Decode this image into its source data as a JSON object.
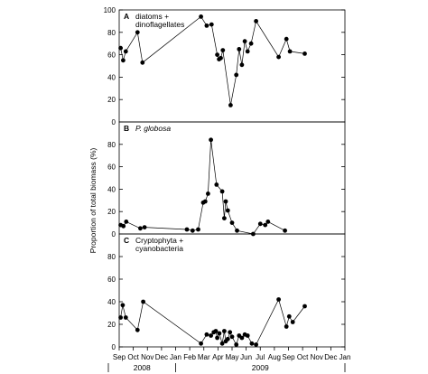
{
  "chart_data": {
    "type": "line",
    "ylabel": "Proportion of total biomass (%)",
    "x_tick_labels": [
      "Sep",
      "Oct",
      "Nov",
      "Dec",
      "Jan",
      "Feb",
      "Mar",
      "Apr",
      "May",
      "Jun",
      "Jul",
      "Aug",
      "Sep",
      "Oct",
      "Nov",
      "Dec",
      "Jan"
    ],
    "year_labels": [
      "2008",
      "2009"
    ],
    "ylim": [
      0,
      100
    ],
    "y_ticks": [
      0,
      20,
      40,
      60,
      80,
      100
    ],
    "y_tick_labels": [
      "0",
      "20",
      "40",
      "60",
      "80",
      "100"
    ],
    "panels": [
      {
        "letter": "A",
        "label_lines": [
          "diatoms +",
          "dinoflagellates"
        ],
        "x": [
          0.1,
          0.28,
          0.47,
          1.3,
          1.65,
          5.8,
          6.2,
          6.55,
          6.95,
          7.08,
          7.2,
          7.35,
          7.9,
          8.3,
          8.5,
          8.7,
          8.9,
          9.1,
          9.35,
          9.7,
          11.3,
          11.85,
          12.1,
          13.15
        ],
        "y": [
          66,
          55,
          63,
          80,
          53,
          94,
          86,
          87,
          60,
          56,
          57,
          64,
          15,
          42,
          65,
          51,
          72,
          63,
          70,
          90,
          58,
          74,
          63,
          61
        ]
      },
      {
        "letter": "B",
        "label_lines": [
          "P. globosa"
        ],
        "x": [
          0.1,
          0.3,
          0.5,
          1.5,
          1.8,
          4.8,
          5.2,
          5.6,
          5.95,
          6.1,
          6.3,
          6.5,
          6.9,
          7.3,
          7.45,
          7.55,
          7.7,
          8.0,
          8.35,
          9.5,
          10.0,
          10.35,
          10.55,
          11.75
        ],
        "y": [
          8,
          7,
          11,
          5,
          6,
          4,
          3,
          4,
          28,
          29,
          36,
          84,
          44,
          38,
          14,
          29,
          21,
          10,
          3,
          0,
          9,
          8,
          11,
          3
        ]
      },
      {
        "letter": "C",
        "label_lines": [
          "Cryptophyta +",
          "cyanobacteria"
        ],
        "x": [
          0.1,
          0.25,
          0.47,
          1.3,
          1.7,
          5.8,
          6.2,
          6.5,
          6.7,
          6.85,
          6.95,
          7.1,
          7.3,
          7.45,
          7.55,
          7.7,
          7.85,
          8.0,
          8.3,
          8.5,
          8.7,
          8.9,
          9.1,
          9.4,
          9.7,
          11.3,
          11.85,
          12.05,
          12.3,
          13.15
        ],
        "y": [
          26,
          37,
          26,
          15,
          40,
          3,
          11,
          10,
          13,
          14,
          8,
          12,
          3,
          14,
          5,
          7,
          13,
          9,
          2,
          10,
          8,
          11,
          10,
          3,
          2,
          42,
          18,
          27,
          22,
          36
        ]
      }
    ]
  }
}
